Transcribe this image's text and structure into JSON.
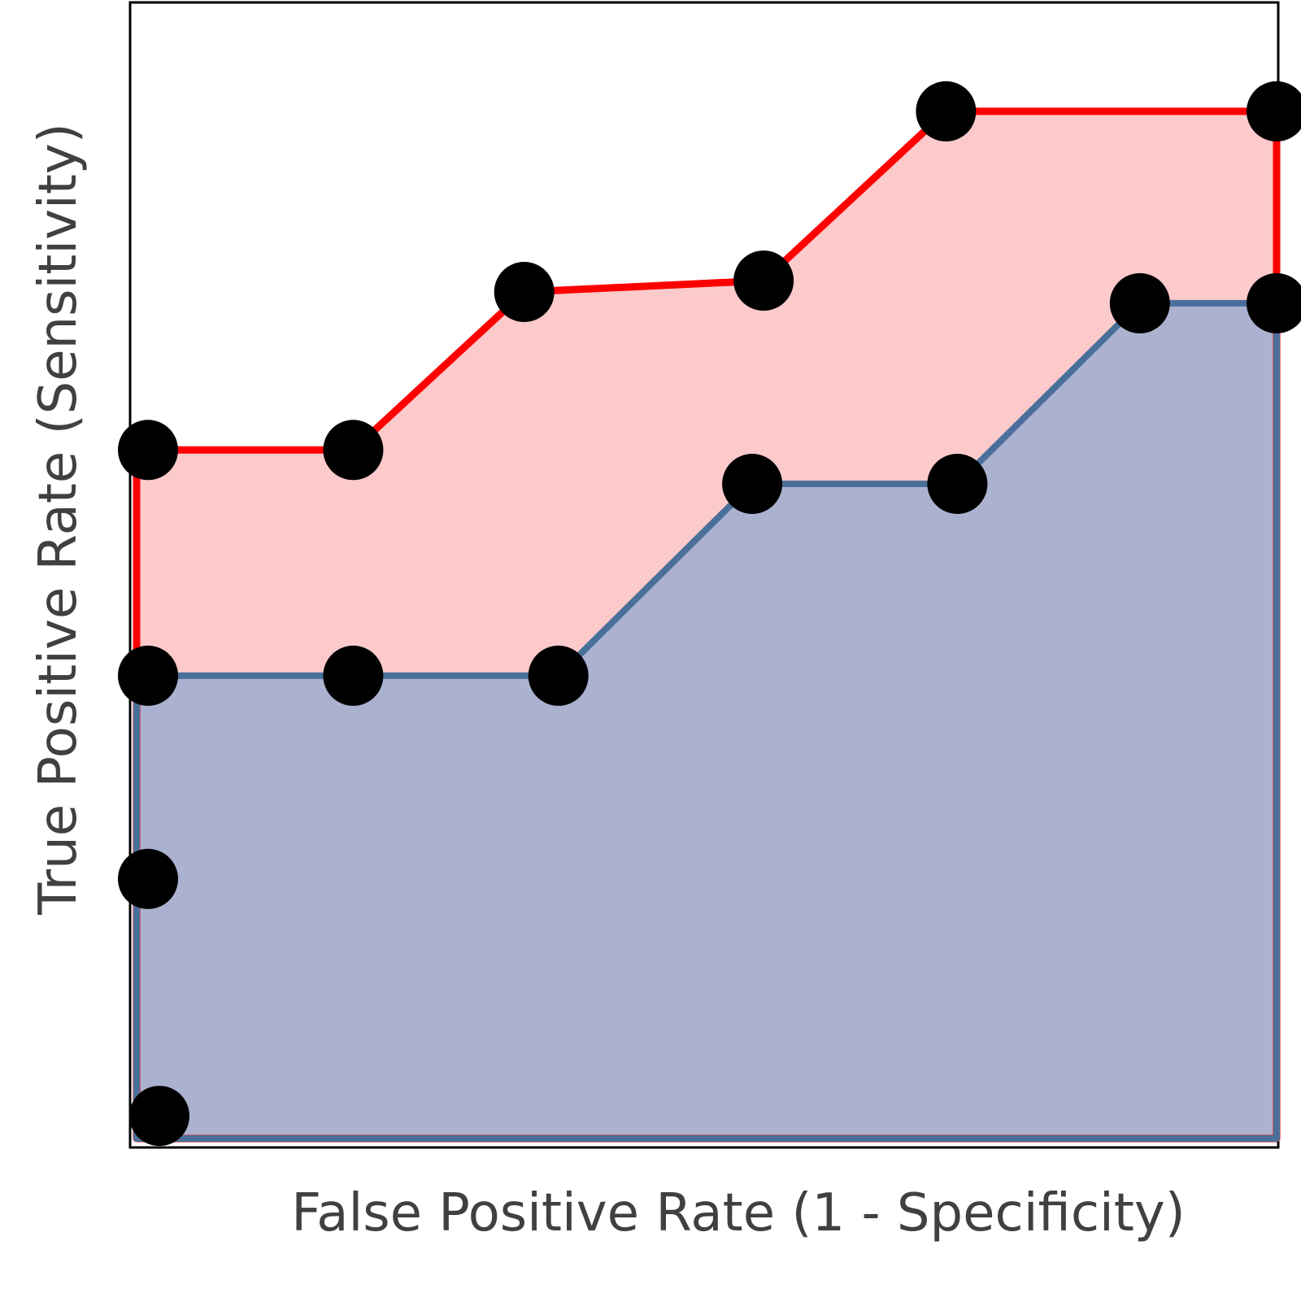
{
  "chart_data": {
    "type": "area",
    "xlabel": "False Positive Rate (1 - Specificity)",
    "ylabel": "True Positive Rate (Sensitivity)",
    "xlim": [
      0,
      1
    ],
    "ylim": [
      0,
      1
    ],
    "grid": false,
    "legend": "none",
    "series": [
      {
        "color": "#ff0000",
        "fill": "#fccaca",
        "points": [
          [
            0.0,
            0.0
          ],
          [
            0.0,
            0.61
          ],
          [
            0.19,
            0.61
          ],
          [
            0.34,
            0.75
          ],
          [
            0.55,
            0.76
          ],
          [
            0.71,
            0.91
          ],
          [
            1.0,
            0.91
          ],
          [
            1.0,
            0.0
          ]
        ],
        "markers": [
          [
            0.01,
            0.61
          ],
          [
            0.19,
            0.61
          ],
          [
            0.34,
            0.75
          ],
          [
            0.55,
            0.76
          ],
          [
            0.71,
            0.91
          ],
          [
            1.0,
            0.91
          ]
        ]
      },
      {
        "color": "#4a6f9a",
        "fill": "#aab2d0",
        "points": [
          [
            0.0,
            0.0
          ],
          [
            0.0,
            0.41
          ],
          [
            0.19,
            0.41
          ],
          [
            0.37,
            0.41
          ],
          [
            0.54,
            0.58
          ],
          [
            0.72,
            0.58
          ],
          [
            0.88,
            0.74
          ],
          [
            1.0,
            0.74
          ],
          [
            1.0,
            0.0
          ]
        ],
        "markers": [
          [
            0.01,
            0.41
          ],
          [
            0.19,
            0.41
          ],
          [
            0.37,
            0.41
          ],
          [
            0.54,
            0.58
          ],
          [
            0.72,
            0.58
          ],
          [
            0.88,
            0.74
          ],
          [
            1.0,
            0.74
          ]
        ]
      }
    ],
    "extra_markers": [
      [
        0.01,
        0.23
      ],
      [
        0.02,
        0.02
      ]
    ]
  }
}
